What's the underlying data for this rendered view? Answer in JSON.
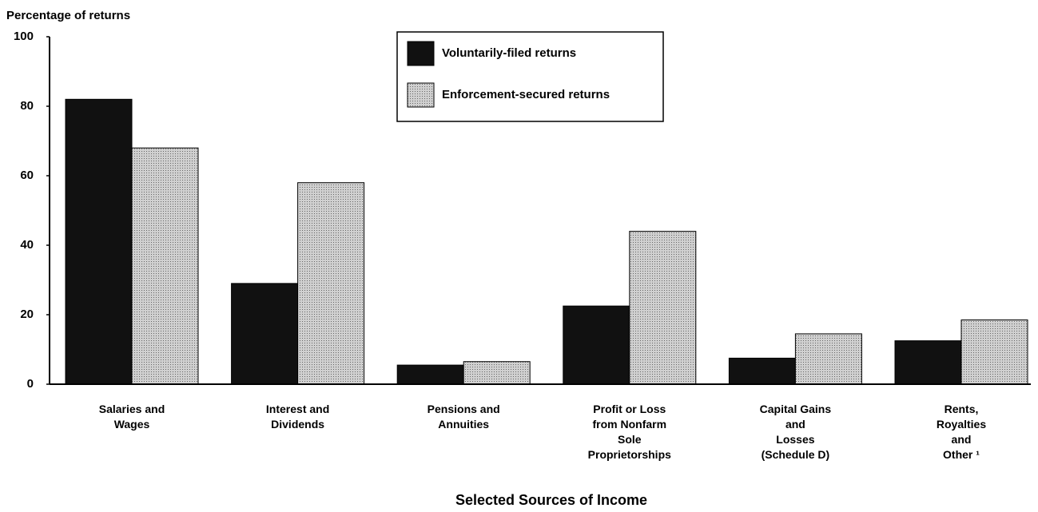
{
  "chart_data": {
    "type": "bar",
    "y_label": "Percentage of returns",
    "x_label": "Selected Sources of Income",
    "categories": [
      "Salaries and\nWages",
      "Interest and\nDividends",
      "Pensions and\nAnnuities",
      "Profit or Loss\nfrom Nonfarm\nSole\nProprietorships",
      "Capital Gains\nand\nLosses\n(Schedule D)",
      "Rents,\nRoyalties\nand\nOther ¹"
    ],
    "series": [
      {
        "name": "Voluntarily-filed returns",
        "color": "#111111",
        "values": [
          82,
          29,
          5.5,
          22.5,
          7.5,
          12.5
        ]
      },
      {
        "name": "Enforcement-secured returns",
        "color": "#d0d0d0",
        "values": [
          68,
          58,
          6.5,
          44,
          14.5,
          18.5
        ]
      }
    ],
    "ylim": [
      0,
      100
    ],
    "yticks": [
      0,
      20,
      40,
      60,
      80,
      100
    ],
    "grid": false
  }
}
